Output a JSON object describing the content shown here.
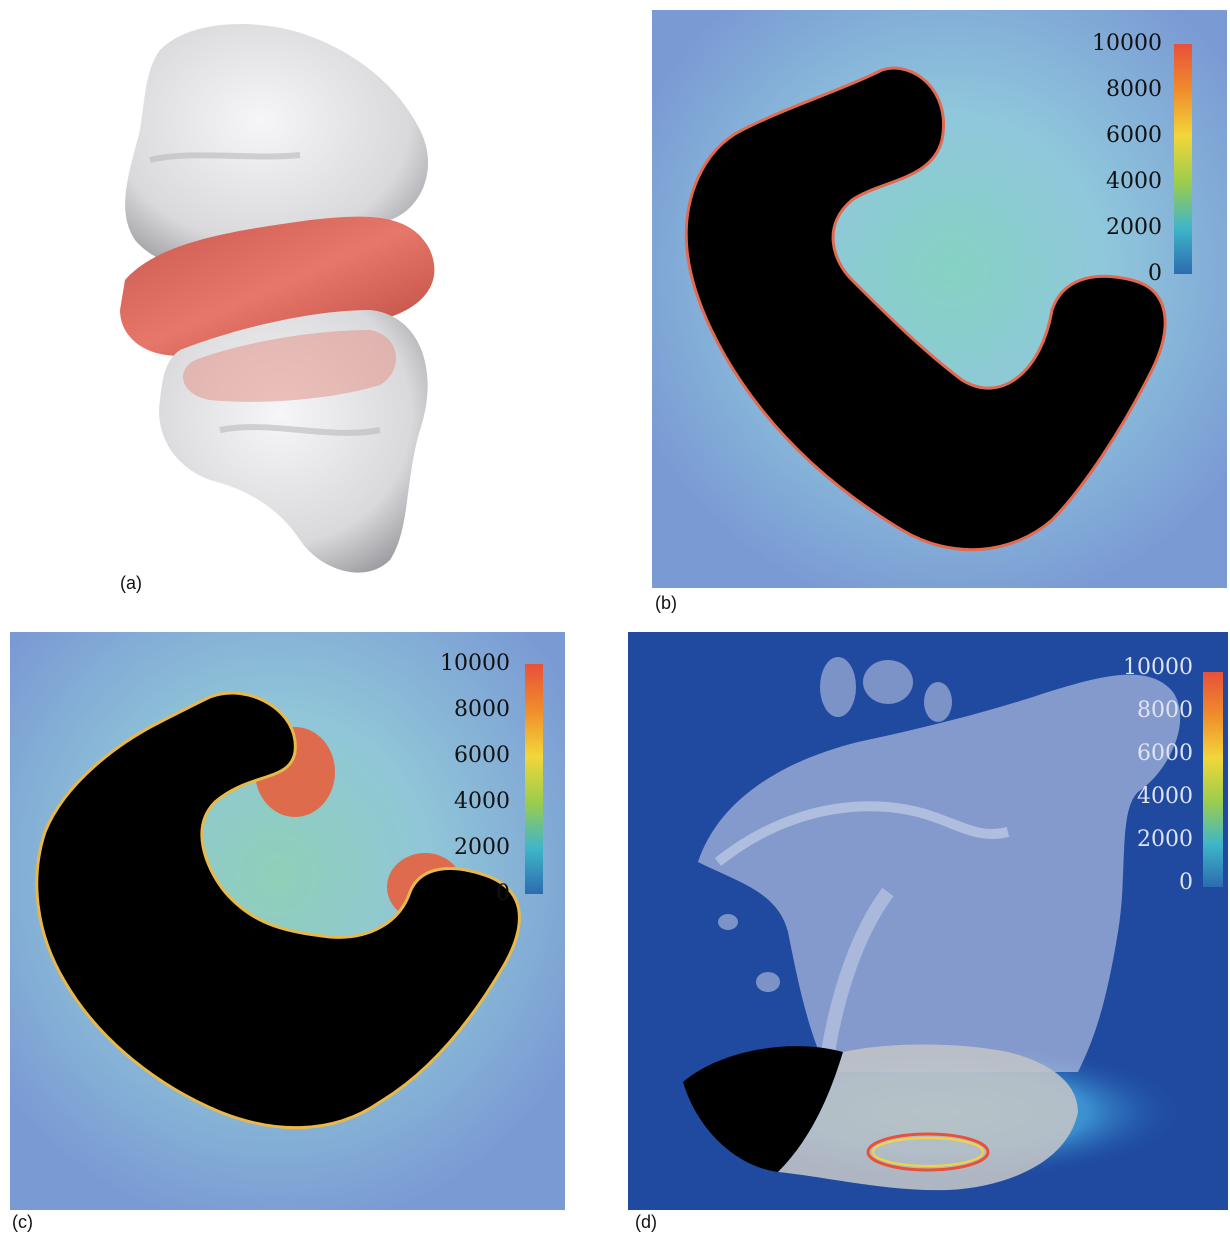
{
  "panels": [
    {
      "id": "a",
      "label": "(a)"
    },
    {
      "id": "b",
      "label": "(b)"
    },
    {
      "id": "c",
      "label": "(c)"
    },
    {
      "id": "d",
      "label": "(d)"
    }
  ],
  "colorbar": {
    "ticks": [
      "10000",
      "8000",
      "6000",
      "4000",
      "2000",
      "0"
    ],
    "range": [
      0,
      10000
    ],
    "colors": [
      "#e8503a",
      "#f08c2c",
      "#f2d63a",
      "#9ccd4c",
      "#3fb6c8",
      "#2c6cb0"
    ]
  },
  "colors": {
    "field_background": "#7a9ad4",
    "field_halo": "#9fd0d8",
    "protein_fill": "#000000",
    "panel_d_background": "#1f4aa0",
    "surface_white": "#e9e9ec",
    "surface_red": "#e06a5a"
  }
}
